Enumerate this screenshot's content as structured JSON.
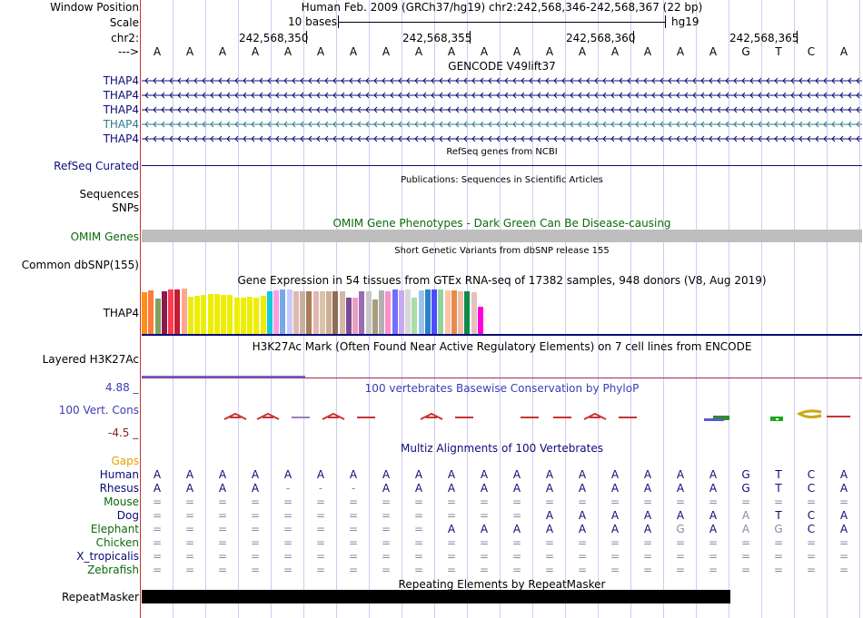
{
  "header": {
    "window_position_label": "Window Position",
    "scale_label": "Scale",
    "chrom_label": "chr2:",
    "strand_label": "--->",
    "assembly_position": "Human Feb. 2009 (GRCh37/hg19)   chr2:242,568,346-242,568,367 (22 bp)",
    "scale_text": "10 bases",
    "scale_db": "hg19",
    "ruler_positions": [
      "242,568,350",
      "242,568,355",
      "242,568,360",
      "242,568,365"
    ]
  },
  "bases": [
    "A",
    "A",
    "A",
    "A",
    "A",
    "A",
    "A",
    "A",
    "A",
    "A",
    "A",
    "A",
    "A",
    "A",
    "A",
    "A",
    "A",
    "A",
    "G",
    "T",
    "C",
    "A"
  ],
  "tracks": {
    "gencode": {
      "title": "GENCODE V49lift37",
      "genes": [
        {
          "name": "THAP4",
          "color": "#0c0c78"
        },
        {
          "name": "THAP4",
          "color": "#0c0c78"
        },
        {
          "name": "THAP4",
          "color": "#0c0c78"
        },
        {
          "name": "THAP4",
          "color": "#2a7c8c"
        },
        {
          "name": "THAP4",
          "color": "#0c0c78"
        }
      ]
    },
    "refseq": {
      "title": "RefSeq genes from NCBI",
      "label": "RefSeq Curated"
    },
    "publications": {
      "title": "Publications: Sequences in Scientific Articles",
      "label_sequences": "Sequences",
      "label_snps": "SNPs"
    },
    "omim": {
      "title": "OMIM Gene Phenotypes - Dark Green Can Be Disease-causing",
      "label": "OMIM Genes"
    },
    "dbsnp": {
      "title": "Short Genetic Variants from dbSNP release 155",
      "label": "Common dbSNP(155)"
    },
    "gtex": {
      "title": "Gene Expression in 54 tissues from GTEx RNA-seq of 17382 samples, 948 donors (V8, Aug 2019)",
      "label": "THAP4",
      "colors": [
        "#ff8e1a",
        "#ff7b3b",
        "#7fa35f",
        "#8d1a4e",
        "#ff3b4f",
        "#c51b35",
        "#ffa98c",
        "#eaea1a",
        "#eeee00",
        "#eeee00",
        "#eeee00",
        "#eeee00",
        "#eeee00",
        "#eeee00",
        "#eeee00",
        "#eeee00",
        "#eeee00",
        "#eeee00",
        "#eeee00",
        "#11ccd8",
        "#ff9de0",
        "#77a8ea",
        "#c9c9ff",
        "#e1b8b0",
        "#c7b0a0",
        "#a87d57",
        "#e1b8b0",
        "#d8c4a8",
        "#cfae93",
        "#8e6e56",
        "#d5b7a5",
        "#7c4a94",
        "#e8a0c0",
        "#9e6bb3",
        "#c8c8c8",
        "#a89e7e",
        "#b1b1b1",
        "#ff8ec6",
        "#6f6fff",
        "#c6a9f2",
        "#d8d8d8",
        "#aadda8",
        "#9ec3ea",
        "#2a82c6",
        "#4c4cff",
        "#8ed6a0",
        "#ffc4a8",
        "#e88a4e",
        "#f0bfa8",
        "#0d8a48",
        "#e6c0c0",
        "#ff00dc"
      ],
      "values": [
        0.92,
        0.95,
        0.78,
        0.93,
        0.98,
        0.98,
        1.0,
        0.82,
        0.83,
        0.86,
        0.88,
        0.88,
        0.86,
        0.85,
        0.8,
        0.8,
        0.82,
        0.8,
        0.84,
        0.93,
        0.96,
        0.98,
        0.97,
        0.94,
        0.94,
        0.94,
        0.94,
        0.94,
        0.93,
        0.93,
        0.93,
        0.8,
        0.8,
        0.94,
        0.93,
        0.75,
        0.96,
        0.93,
        0.98,
        0.96,
        0.98,
        0.8,
        0.95,
        0.97,
        0.97,
        0.98,
        0.95,
        0.96,
        0.93,
        0.93,
        0.91,
        0.6
      ]
    },
    "h3k27ac": {
      "title": "H3K27Ac Mark (Often Found Near Active Regulatory Elements) on 7 cell lines from ENCODE",
      "label": "Layered H3K27Ac"
    },
    "phylop": {
      "title": "100 vertebrates Basewise Conservation by PhyloP",
      "label": "100 Vert. Cons",
      "max_label": "4.88 _",
      "min_label": "-4.5 _"
    },
    "multiz": {
      "title": "Multiz Alignments of 100 Vertebrates",
      "gaps_label": "Gaps",
      "species": [
        {
          "name": "Human",
          "color": "#0a0a78",
          "seq": [
            "A",
            "A",
            "A",
            "A",
            "A",
            "A",
            "A",
            "A",
            "A",
            "A",
            "A",
            "A",
            "A",
            "A",
            "A",
            "A",
            "A",
            "A",
            "G",
            "T",
            "C",
            "A"
          ]
        },
        {
          "name": "Rhesus",
          "color": "#0a0a78",
          "seq": [
            "A",
            "A",
            "A",
            "A",
            "-",
            "-",
            "-",
            "A",
            "A",
            "A",
            "A",
            "A",
            "A",
            "A",
            "A",
            "A",
            "A",
            "A",
            "G",
            "T",
            "C",
            "A"
          ]
        },
        {
          "name": "Mouse",
          "color": "#0b6a0b",
          "seq": [
            "=",
            "=",
            "=",
            "=",
            "=",
            "=",
            "=",
            "=",
            "=",
            "=",
            "=",
            "=",
            "=",
            "=",
            "=",
            "=",
            "=",
            "=",
            "=",
            "=",
            "=",
            "="
          ]
        },
        {
          "name": "Dog",
          "color": "#0a0a78",
          "seq": [
            "=",
            "=",
            "=",
            "=",
            "=",
            "=",
            "=",
            "=",
            "=",
            "=",
            "=",
            "=",
            "A",
            "A",
            "A",
            "A",
            "A",
            "A",
            "A",
            "T",
            "C",
            "A"
          ]
        },
        {
          "name": "Elephant",
          "color": "#0b6a0b",
          "seq": [
            "=",
            "=",
            "=",
            "=",
            "=",
            "=",
            "=",
            "=",
            "=",
            "A",
            "A",
            "A",
            "A",
            "A",
            "A",
            "A",
            "G",
            "A",
            "A",
            "G",
            "C",
            "A"
          ]
        },
        {
          "name": "Chicken",
          "color": "#0b6a0b",
          "seq": [
            "=",
            "=",
            "=",
            "=",
            "=",
            "=",
            "=",
            "=",
            "=",
            "=",
            "=",
            "=",
            "=",
            "=",
            "=",
            "=",
            "=",
            "=",
            "=",
            "=",
            "=",
            "="
          ]
        },
        {
          "name": "X_tropicalis",
          "color": "#0a0a78",
          "seq": [
            "=",
            "=",
            "=",
            "=",
            "=",
            "=",
            "=",
            "=",
            "=",
            "=",
            "=",
            "=",
            "=",
            "=",
            "=",
            "=",
            "=",
            "=",
            "=",
            "=",
            "=",
            "="
          ]
        },
        {
          "name": "Zebrafish",
          "color": "#0b6a0b",
          "seq": [
            "=",
            "=",
            "=",
            "=",
            "=",
            "=",
            "=",
            "=",
            "=",
            "=",
            "=",
            "=",
            "=",
            "=",
            "=",
            "=",
            "=",
            "=",
            "=",
            "=",
            "=",
            "="
          ]
        }
      ]
    },
    "repeatmasker": {
      "title": "Repeating Elements by RepeatMasker",
      "label": "RepeatMasker"
    }
  },
  "colors": {
    "label_blue": "#0c0c78",
    "omim_green": "#0b6a0b",
    "gaps_orange": "#e8a000",
    "phylop_blue": "#3c3cb4",
    "phylop_red": "#8c1e1e",
    "guide": "#d0ccf0",
    "omim_bar": "#bebebe"
  }
}
